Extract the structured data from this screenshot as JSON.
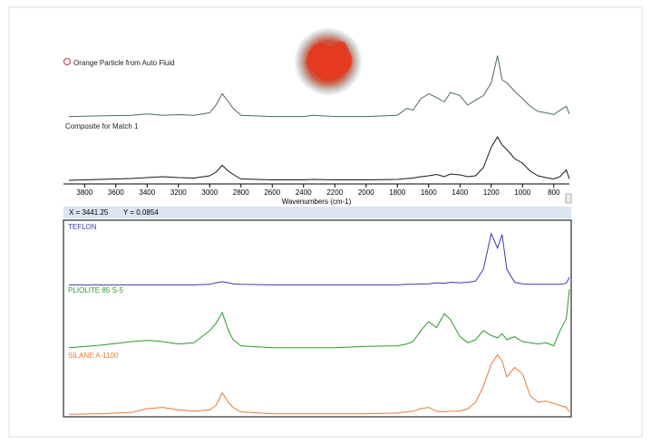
{
  "status": {
    "x_readout": "X = 3441.25",
    "y_readout": "Y = 0.0854"
  },
  "chart_data": [
    {
      "type": "line",
      "title": "Orange Particle from Auto Fluid",
      "color": "#4d6b5e",
      "xlim": [
        3935,
        700
      ],
      "ylim": [
        0,
        1
      ],
      "x": [
        3900,
        3700,
        3500,
        3400,
        3300,
        3200,
        3100,
        3000,
        2960,
        2920,
        2880,
        2850,
        2800,
        2600,
        2400,
        2340,
        2200,
        2000,
        1800,
        1740,
        1700,
        1650,
        1600,
        1550,
        1500,
        1460,
        1400,
        1350,
        1300,
        1250,
        1200,
        1160,
        1130,
        1100,
        1050,
        1000,
        950,
        900,
        850,
        800,
        760,
        720,
        700
      ],
      "values": [
        0.02,
        0.03,
        0.04,
        0.06,
        0.04,
        0.05,
        0.04,
        0.08,
        0.2,
        0.38,
        0.25,
        0.15,
        0.04,
        0.02,
        0.02,
        0.04,
        0.02,
        0.02,
        0.04,
        0.15,
        0.12,
        0.3,
        0.38,
        0.32,
        0.25,
        0.4,
        0.35,
        0.2,
        0.28,
        0.35,
        0.55,
        0.98,
        0.6,
        0.55,
        0.42,
        0.3,
        0.18,
        0.1,
        0.08,
        0.05,
        0.12,
        0.18,
        0.06
      ]
    },
    {
      "type": "line",
      "title": "Composite for Match 1",
      "color": "#151515",
      "xlim": [
        3935,
        700
      ],
      "ylim": [
        0,
        1
      ],
      "xlabel": "Wavenumbers (cm-1)",
      "xticks": [
        3800,
        3600,
        3400,
        3200,
        3000,
        2800,
        2600,
        2400,
        2200,
        2000,
        1800,
        1600,
        1400,
        1200,
        1000,
        800
      ],
      "x": [
        3900,
        3700,
        3500,
        3400,
        3300,
        3200,
        3100,
        3000,
        2960,
        2920,
        2880,
        2850,
        2800,
        2600,
        2400,
        2340,
        2200,
        2000,
        1800,
        1740,
        1700,
        1650,
        1600,
        1550,
        1500,
        1460,
        1400,
        1350,
        1300,
        1250,
        1200,
        1160,
        1130,
        1100,
        1050,
        1000,
        950,
        900,
        850,
        800,
        760,
        720,
        700
      ],
      "values": [
        0.02,
        0.04,
        0.06,
        0.08,
        0.1,
        0.08,
        0.07,
        0.12,
        0.2,
        0.35,
        0.22,
        0.15,
        0.05,
        0.03,
        0.03,
        0.04,
        0.03,
        0.03,
        0.04,
        0.06,
        0.07,
        0.1,
        0.12,
        0.15,
        0.1,
        0.16,
        0.14,
        0.1,
        0.12,
        0.3,
        0.75,
        0.98,
        0.8,
        0.7,
        0.5,
        0.4,
        0.22,
        0.12,
        0.08,
        0.05,
        0.1,
        0.25,
        0.05
      ]
    },
    {
      "type": "line",
      "title": "TEFLON",
      "color": "#3a3ab0",
      "xlim": [
        3935,
        700
      ],
      "ylim": [
        0,
        1
      ],
      "x": [
        3900,
        3700,
        3500,
        3400,
        3300,
        3200,
        3100,
        3000,
        2960,
        2920,
        2880,
        2850,
        2800,
        2600,
        2400,
        2340,
        2200,
        2000,
        1800,
        1740,
        1700,
        1650,
        1600,
        1550,
        1500,
        1460,
        1400,
        1350,
        1300,
        1250,
        1200,
        1160,
        1130,
        1100,
        1050,
        1000,
        950,
        900,
        850,
        800,
        760,
        720,
        700
      ],
      "values": [
        0.01,
        0.01,
        0.01,
        0.01,
        0.01,
        0.01,
        0.01,
        0.02,
        0.05,
        0.07,
        0.05,
        0.03,
        0.02,
        0.01,
        0.01,
        0.01,
        0.01,
        0.01,
        0.01,
        0.02,
        0.02,
        0.03,
        0.03,
        0.05,
        0.04,
        0.06,
        0.05,
        0.06,
        0.08,
        0.3,
        0.97,
        0.7,
        0.95,
        0.3,
        0.06,
        0.03,
        0.02,
        0.02,
        0.02,
        0.02,
        0.02,
        0.04,
        0.15
      ]
    },
    {
      "type": "line",
      "title": "PLIOLITE 85 S-5",
      "color": "#2a9a2a",
      "xlim": [
        3935,
        700
      ],
      "ylim": [
        0,
        1
      ],
      "x": [
        3900,
        3700,
        3500,
        3400,
        3300,
        3200,
        3100,
        3000,
        2960,
        2920,
        2880,
        2850,
        2800,
        2600,
        2400,
        2340,
        2200,
        2000,
        1800,
        1740,
        1700,
        1650,
        1600,
        1550,
        1500,
        1460,
        1400,
        1350,
        1300,
        1250,
        1200,
        1160,
        1130,
        1100,
        1050,
        1000,
        950,
        900,
        850,
        800,
        760,
        720,
        700
      ],
      "values": [
        0.02,
        0.06,
        0.12,
        0.14,
        0.12,
        0.08,
        0.1,
        0.3,
        0.42,
        0.6,
        0.3,
        0.15,
        0.05,
        0.02,
        0.02,
        0.02,
        0.02,
        0.04,
        0.05,
        0.08,
        0.12,
        0.3,
        0.45,
        0.35,
        0.58,
        0.48,
        0.2,
        0.1,
        0.15,
        0.3,
        0.22,
        0.18,
        0.25,
        0.15,
        0.2,
        0.12,
        0.1,
        0.08,
        0.1,
        0.05,
        0.3,
        0.5,
        0.98
      ]
    },
    {
      "type": "line",
      "title": "SILANE A-1100",
      "color": "#e57a35",
      "xlim": [
        3935,
        700
      ],
      "ylim": [
        0,
        1
      ],
      "x": [
        3900,
        3700,
        3500,
        3400,
        3300,
        3200,
        3100,
        3000,
        2960,
        2920,
        2880,
        2850,
        2800,
        2600,
        2400,
        2340,
        2200,
        2000,
        1800,
        1740,
        1700,
        1650,
        1600,
        1550,
        1500,
        1460,
        1400,
        1350,
        1300,
        1250,
        1200,
        1160,
        1130,
        1100,
        1050,
        1000,
        950,
        900,
        850,
        800,
        760,
        720,
        700
      ],
      "values": [
        0.01,
        0.02,
        0.04,
        0.1,
        0.12,
        0.08,
        0.06,
        0.08,
        0.15,
        0.35,
        0.2,
        0.12,
        0.05,
        0.02,
        0.02,
        0.02,
        0.02,
        0.02,
        0.03,
        0.05,
        0.06,
        0.1,
        0.12,
        0.06,
        0.05,
        0.06,
        0.06,
        0.1,
        0.2,
        0.45,
        0.8,
        0.95,
        0.85,
        0.6,
        0.75,
        0.65,
        0.3,
        0.2,
        0.22,
        0.18,
        0.15,
        0.12,
        0.05
      ]
    }
  ]
}
